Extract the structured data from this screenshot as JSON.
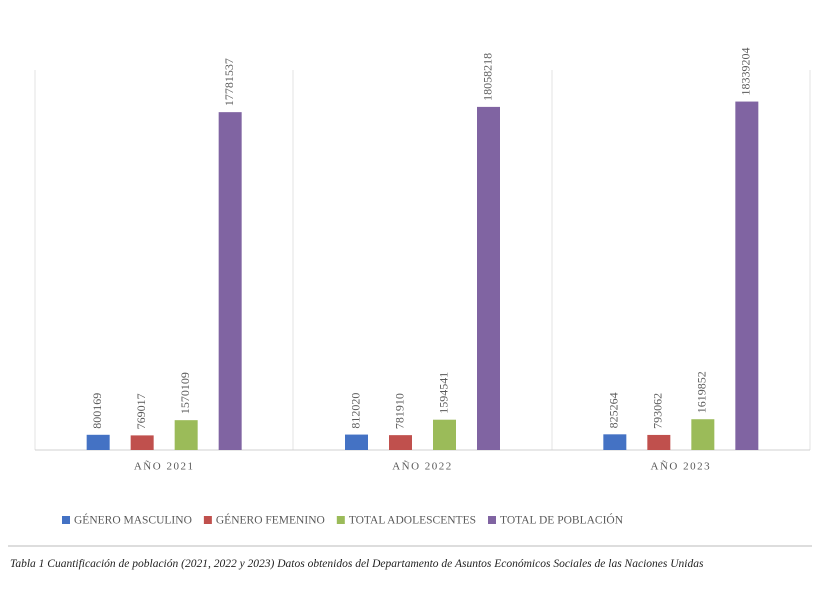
{
  "chart_data": {
    "type": "bar",
    "categories": [
      "AÑO 2021",
      "AÑO 2022",
      "AÑO 2023"
    ],
    "series": [
      {
        "name": "GÉNERO MASCULINO",
        "color": "#4472c4",
        "values": [
          800169,
          812020,
          825264
        ]
      },
      {
        "name": "GÉNERO FEMENINO",
        "color": "#c0504d",
        "values": [
          769017,
          781910,
          793062
        ]
      },
      {
        "name": "TOTAL ADOLESCENTES",
        "color": "#9bbb59",
        "values": [
          1570109,
          1594541,
          1619852
        ]
      },
      {
        "name": "TOTAL DE POBLACIÓN",
        "color": "#8064a2",
        "values": [
          17781537,
          18058218,
          18339204
        ]
      }
    ],
    "ylim": [
      0,
      20000000
    ],
    "legend": "bottom",
    "caption": "Tabla 1 Cuantificación de población (2021, 2022 y 2023) Datos obtenidos del Departamento de Asuntos Económicos Sociales de las Naciones Unidas"
  }
}
